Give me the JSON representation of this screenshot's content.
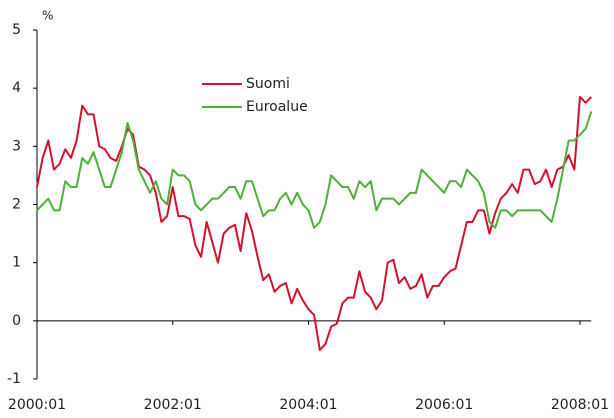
{
  "chart_data": {
    "type": "line",
    "yunit": "%",
    "categories": [
      "2000:01",
      null,
      null,
      null,
      null,
      null,
      null,
      null,
      null,
      null,
      null,
      null,
      null,
      null,
      null,
      null,
      null,
      null,
      null,
      null,
      null,
      null,
      null,
      null,
      "2002:01",
      null,
      null,
      null,
      null,
      null,
      null,
      null,
      null,
      null,
      null,
      null,
      null,
      null,
      null,
      null,
      null,
      null,
      null,
      null,
      null,
      null,
      null,
      null,
      "2004:01",
      null,
      null,
      null,
      null,
      null,
      null,
      null,
      null,
      null,
      null,
      null,
      null,
      null,
      null,
      null,
      null,
      null,
      null,
      null,
      null,
      null,
      null,
      null,
      "2006:01",
      null,
      null,
      null,
      null,
      null,
      null,
      null,
      null,
      null,
      null,
      null,
      null,
      null,
      null,
      null,
      null,
      null,
      null,
      null,
      null,
      null,
      null,
      null,
      "2008:01",
      null,
      null
    ],
    "series": [
      {
        "name": "Suomi",
        "color": "#d2112e",
        "values": [
          2.3,
          2.8,
          3.1,
          2.6,
          2.7,
          2.95,
          2.8,
          3.1,
          3.7,
          3.55,
          3.55,
          3.0,
          2.95,
          2.8,
          2.75,
          3.0,
          3.3,
          3.2,
          2.65,
          2.6,
          2.5,
          2.2,
          1.7,
          1.8,
          2.3,
          1.8,
          1.8,
          1.75,
          1.3,
          1.1,
          1.7,
          1.35,
          1.0,
          1.5,
          1.6,
          1.65,
          1.2,
          1.85,
          1.55,
          1.1,
          0.7,
          0.8,
          0.5,
          0.6,
          0.65,
          0.3,
          0.55,
          0.35,
          0.2,
          0.1,
          -0.5,
          -0.4,
          -0.1,
          -0.05,
          0.3,
          0.4,
          0.4,
          0.85,
          0.5,
          0.4,
          0.2,
          0.35,
          1.0,
          1.05,
          0.65,
          0.75,
          0.55,
          0.6,
          0.8,
          0.4,
          0.6,
          0.6,
          0.75,
          0.85,
          0.9,
          1.3,
          1.7,
          1.7,
          1.9,
          1.9,
          1.5,
          1.85,
          2.1,
          2.2,
          2.35,
          2.2,
          2.6,
          2.6,
          2.35,
          2.4,
          2.6,
          2.3,
          2.6,
          2.65,
          2.85,
          2.6,
          3.85,
          3.75,
          3.85
        ]
      },
      {
        "name": "Euroalue",
        "color": "#4fae3c",
        "values": [
          1.9,
          2.0,
          2.1,
          1.9,
          1.9,
          2.4,
          2.3,
          2.3,
          2.8,
          2.7,
          2.9,
          2.6,
          2.3,
          2.3,
          2.6,
          2.9,
          3.4,
          3.1,
          2.6,
          2.4,
          2.2,
          2.4,
          2.1,
          2.0,
          2.6,
          2.5,
          2.5,
          2.4,
          2.0,
          1.9,
          2.0,
          2.1,
          2.1,
          2.2,
          2.3,
          2.3,
          2.1,
          2.4,
          2.4,
          2.1,
          1.8,
          1.9,
          1.9,
          2.1,
          2.2,
          2.0,
          2.2,
          2.0,
          1.9,
          1.6,
          1.7,
          2.0,
          2.5,
          2.4,
          2.3,
          2.3,
          2.1,
          2.4,
          2.3,
          2.4,
          1.9,
          2.1,
          2.1,
          2.1,
          2.0,
          2.1,
          2.2,
          2.2,
          2.6,
          2.5,
          2.4,
          2.3,
          2.2,
          2.4,
          2.4,
          2.3,
          2.6,
          2.5,
          2.4,
          2.2,
          1.7,
          1.6,
          1.9,
          1.9,
          1.8,
          1.9,
          1.9,
          1.9,
          1.9,
          1.9,
          1.8,
          1.7,
          2.1,
          2.6,
          3.1,
          3.1,
          3.2,
          3.3,
          3.6
        ]
      }
    ],
    "ylim": [
      -1,
      5
    ],
    "yticks": [
      -1,
      0,
      1,
      2,
      3,
      4,
      5
    ],
    "grid": false
  }
}
